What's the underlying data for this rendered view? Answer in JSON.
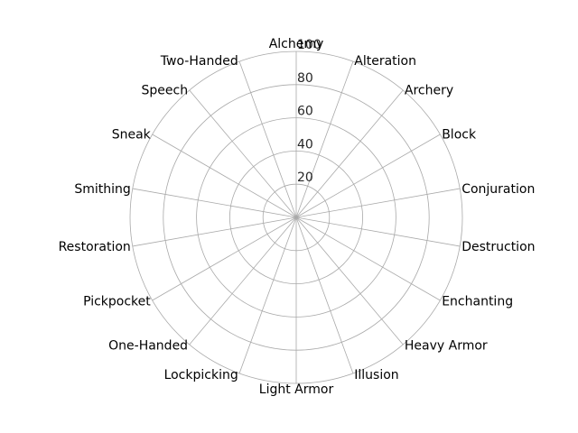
{
  "chart_data": {
    "type": "radar",
    "categories": [
      "Alchemy",
      "Alteration",
      "Archery",
      "Block",
      "Conjuration",
      "Destruction",
      "Enchanting",
      "Heavy Armor",
      "Illusion",
      "Light Armor",
      "Lockpicking",
      "One-Handed",
      "Pickpocket",
      "Restoration",
      "Smithing",
      "Sneak",
      "Speech",
      "Two-Handed"
    ],
    "series": [],
    "rlim": [
      0,
      100
    ],
    "r_ticks": [
      20,
      40,
      60,
      80,
      100
    ],
    "r_tick_labels": [
      "20",
      "40",
      "60",
      "80",
      "100"
    ],
    "grid": true,
    "legend": "none"
  },
  "colors": {
    "grid": "#a9a9a9",
    "text": "#000000"
  }
}
